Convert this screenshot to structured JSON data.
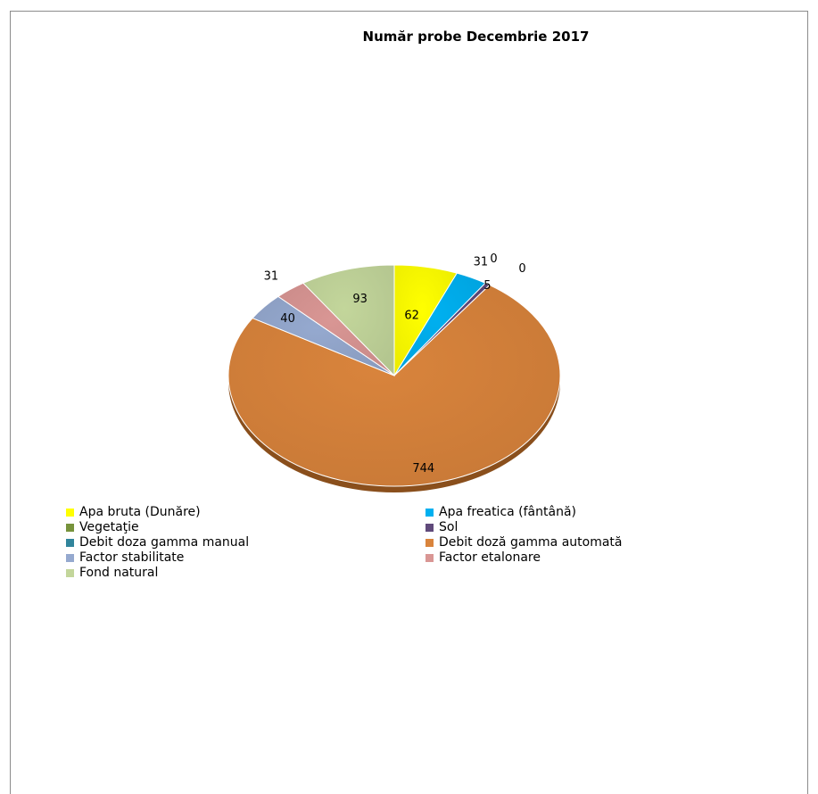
{
  "chart_data": {
    "type": "pie",
    "title": "Număr probe Decembrie 2017",
    "slices": [
      {
        "name": "Apa bruta (Dunăre)",
        "value": 62,
        "color": "#ffff00",
        "label": "62"
      },
      {
        "name": "Apa freatica (fântână)",
        "value": 31,
        "color": "#00b0f0",
        "label": "31"
      },
      {
        "name": "Vegetaţie",
        "value": 0,
        "color": "#77933c",
        "label": "0"
      },
      {
        "name": "Sol",
        "value": 5,
        "color": "#604a7b",
        "label": "5"
      },
      {
        "name": "Debit  doza gamma manual",
        "value": 0,
        "color": "#31859c",
        "label": "0"
      },
      {
        "name": "Debit doză gamma automată",
        "value": 744,
        "color": "#d9843c",
        "label": "744"
      },
      {
        "name": "Factor stabilitate",
        "value": 40,
        "color": "#95a9cf",
        "label": "40"
      },
      {
        "name": "Factor etalonare",
        "value": 31,
        "color": "#d99694",
        "label": "31"
      },
      {
        "name": "Fond natural",
        "value": 93,
        "color": "#c3d69b",
        "label": "93"
      }
    ],
    "legend_position": "bottom"
  }
}
